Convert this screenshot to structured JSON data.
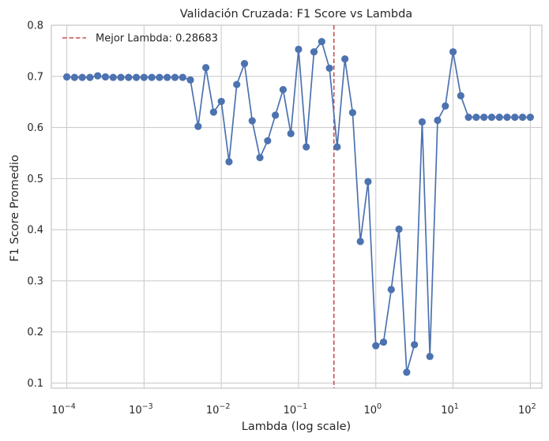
{
  "chart_data": {
    "type": "line",
    "title": "Validación Cruzada: F1 Score vs Lambda",
    "xlabel": "Lambda (log scale)",
    "ylabel": "F1 Score Promedio",
    "xscale": "log",
    "xlim_exp": [
      -4.2,
      2.15
    ],
    "ylim": [
      0.09,
      0.8
    ],
    "x_ticks_exp": [
      -4,
      -3,
      -2,
      -1,
      0,
      1,
      2
    ],
    "x_tick_base": "10",
    "y_ticks": [
      0.1,
      0.2,
      0.3,
      0.4,
      0.5,
      0.6,
      0.7,
      0.8
    ],
    "y_tick_labels": [
      "0.1",
      "0.2",
      "0.3",
      "0.4",
      "0.5",
      "0.6",
      "0.7",
      "0.8"
    ],
    "grid": true,
    "legend_position": "top-left",
    "colors": {
      "series": "#4c72b0",
      "vline": "#c44e52",
      "grid": "#cccccc",
      "spine": "#cccccc"
    },
    "vline": {
      "x": 0.28683,
      "label": "Mejor Lambda: 0.28683"
    },
    "series": [
      {
        "x_exp_range": [
          -4,
          2
        ],
        "count": 61,
        "values": [
          0.699,
          0.698,
          0.698,
          0.698,
          0.701,
          0.699,
          0.698,
          0.698,
          0.698,
          0.698,
          0.698,
          0.698,
          0.698,
          0.698,
          0.698,
          0.698,
          0.693,
          0.602,
          0.717,
          0.63,
          0.651,
          0.533,
          0.684,
          0.725,
          0.613,
          0.541,
          0.574,
          0.624,
          0.674,
          0.588,
          0.753,
          0.562,
          0.748,
          0.768,
          0.716,
          0.562,
          0.734,
          0.629,
          0.377,
          0.494,
          0.173,
          0.18,
          0.283,
          0.401,
          0.121,
          0.175,
          0.611,
          0.152,
          0.614,
          0.642,
          0.748,
          0.662,
          0.62,
          0.62,
          0.62,
          0.62,
          0.62,
          0.62,
          0.62,
          0.62,
          0.62
        ]
      }
    ]
  }
}
